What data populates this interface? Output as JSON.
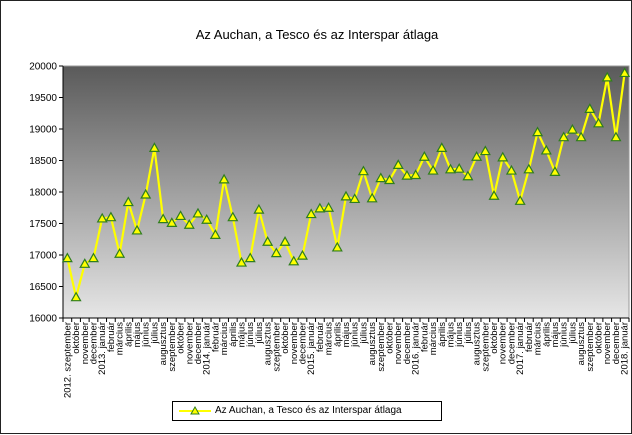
{
  "chart_data": {
    "type": "line",
    "title": "Az Auchan, a Tesco és az Interspar átlaga",
    "xlabel": "",
    "ylabel": "",
    "ylim": [
      16000,
      20000
    ],
    "yticks": [
      "16000",
      "16500",
      "17000",
      "17500",
      "18000",
      "18500",
      "19000",
      "19500",
      "20000"
    ],
    "grid": false,
    "legend_position": "bottom",
    "colors": {
      "line": "#ffff00",
      "marker_fill": "#ffff00",
      "marker_edge": "#2e7d1e",
      "plot_top": "#5a5a5a",
      "plot_bottom": "#e6e6e6"
    },
    "categories": [
      "2012. szeptember",
      "október",
      "november",
      "december",
      "2013. január",
      "február",
      "március",
      "április",
      "május",
      "június",
      "július",
      "augusztus",
      "szeptember",
      "október",
      "november",
      "december",
      "2014. január",
      "február",
      "március",
      "április",
      "május",
      "június",
      "július",
      "augusztus",
      "szeptember",
      "október",
      "november",
      "december",
      "2015. január",
      "február",
      "március",
      "április",
      "május",
      "június",
      "július",
      "augusztus",
      "szeptember",
      "október",
      "november",
      "december",
      "2016. január",
      "február",
      "március",
      "április",
      "május",
      "június",
      "július",
      "augusztus",
      "szeptember",
      "október",
      "november",
      "december",
      "2017. január",
      "február",
      "március",
      "április",
      "május",
      "június",
      "július",
      "augusztus",
      "szeptember",
      "október",
      "november",
      "december",
      "2018. január"
    ],
    "series": [
      {
        "name": "Az Auchan, a Tesco és az Interspar átlaga",
        "values": [
          16950,
          16330,
          16860,
          16950,
          17580,
          17600,
          17020,
          17840,
          17390,
          17960,
          18700,
          17570,
          17510,
          17620,
          17480,
          17660,
          17560,
          17320,
          18200,
          17600,
          16880,
          16950,
          17720,
          17210,
          17030,
          17210,
          16900,
          16990,
          17650,
          17740,
          17750,
          17120,
          17930,
          17890,
          18330,
          17900,
          18220,
          18190,
          18430,
          18260,
          18270,
          18560,
          18340,
          18700,
          18360,
          18370,
          18250,
          18560,
          18650,
          17940,
          18550,
          18340,
          17860,
          18360,
          18950,
          18660,
          18320,
          18870,
          18990,
          18870,
          19320,
          19090,
          19820,
          18870,
          19890
        ]
      }
    ]
  }
}
